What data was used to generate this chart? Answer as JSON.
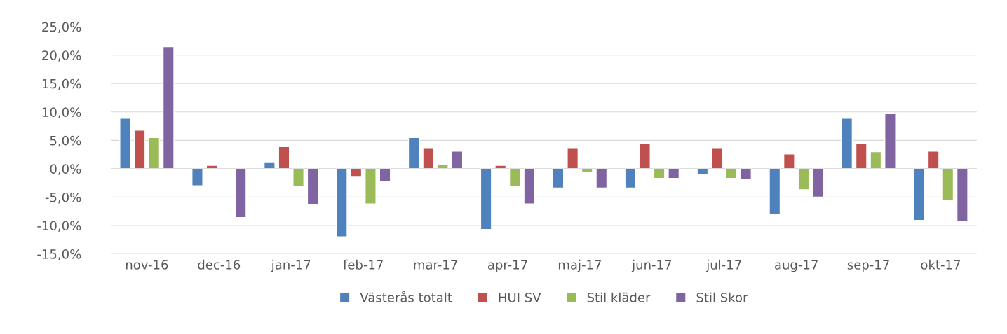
{
  "chart_data": {
    "type": "bar",
    "categories": [
      "nov-16",
      "dec-16",
      "jan-17",
      "feb-17",
      "mar-17",
      "apr-17",
      "maj-17",
      "jun-17",
      "jul-17",
      "aug-17",
      "sep-17",
      "okt-17"
    ],
    "series": [
      {
        "name": "Västerås totalt",
        "color": "#4f81bd",
        "values": [
          8.9,
          -3.0,
          1.1,
          -12.0,
          5.5,
          -10.7,
          -3.4,
          -3.4,
          -1.1,
          -8.0,
          8.9,
          -9.1
        ]
      },
      {
        "name": "HUI SV",
        "color": "#c0504d",
        "values": [
          6.8,
          0.6,
          3.9,
          -1.5,
          3.6,
          0.6,
          3.6,
          4.4,
          3.6,
          2.6,
          4.4,
          3.1
        ]
      },
      {
        "name": "Stil kläder",
        "color": "#9bbb59",
        "values": [
          5.5,
          null,
          -3.1,
          -6.2,
          0.7,
          -3.1,
          -0.7,
          -1.7,
          -1.7,
          -3.7,
          3.0,
          -5.6
        ]
      },
      {
        "name": "Stil Skor",
        "color": "#8064a2",
        "values": [
          21.5,
          -8.6,
          -6.3,
          -2.2,
          3.1,
          -6.2,
          -3.4,
          -1.7,
          -1.9,
          -5.0,
          9.7,
          -9.3
        ]
      }
    ],
    "ylim": [
      -15,
      25
    ],
    "yticks": [
      {
        "value": -15,
        "label": "-15,0%"
      },
      {
        "value": -10,
        "label": "-10,0%"
      },
      {
        "value": -5,
        "label": "-5,0%"
      },
      {
        "value": 0,
        "label": "0,0%"
      },
      {
        "value": 5,
        "label": "5,0%"
      },
      {
        "value": 10,
        "label": "10,0%"
      },
      {
        "value": 15,
        "label": "15,0%"
      },
      {
        "value": 20,
        "label": "20,0%"
      },
      {
        "value": 25,
        "label": "25,0%"
      }
    ],
    "grid": "y",
    "legend": "bottom"
  }
}
